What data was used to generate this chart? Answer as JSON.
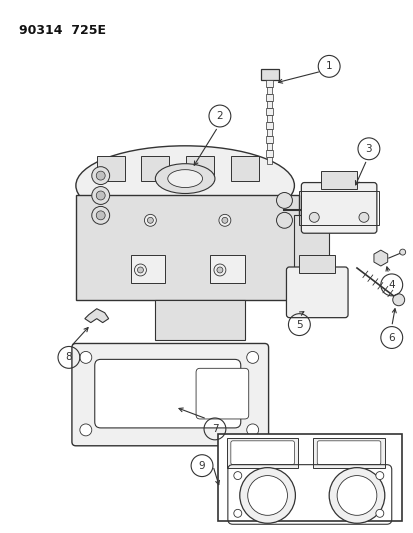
{
  "title": "90314  725E",
  "bg_color": "#ffffff",
  "line_color": "#333333",
  "fig_width": 4.14,
  "fig_height": 5.33,
  "dpi": 100
}
